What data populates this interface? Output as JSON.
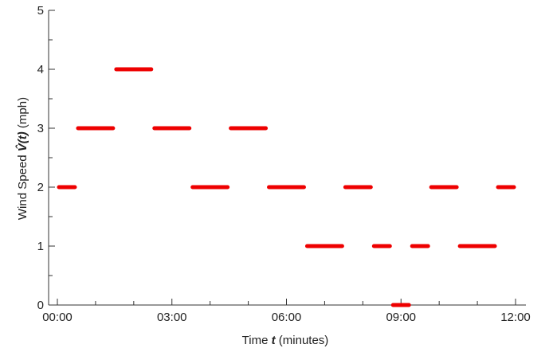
{
  "chart_data": {
    "type": "line",
    "xlabel_prefix": "Time ",
    "xlabel_var": "t",
    "xlabel_suffix": " (minutes)",
    "ylabel_prefix": "Wind Speed ",
    "ylabel_var": "V̂(t)",
    "ylabel_suffix": " (mph)",
    "xlim": [
      0,
      12
    ],
    "ylim": [
      0,
      5
    ],
    "x_ticks": [
      0,
      3,
      6,
      9,
      12
    ],
    "x_tick_labels": [
      "00:00",
      "03:00",
      "06:00",
      "09:00",
      "12:00"
    ],
    "y_ticks": [
      0,
      1,
      2,
      3,
      4,
      5
    ],
    "y_tick_labels": [
      "0",
      "1",
      "2",
      "3",
      "4",
      "5"
    ],
    "grid": false,
    "series_color": "#ee0000",
    "segments": [
      {
        "x_start": 0.0,
        "x_end": 0.5,
        "y": 2
      },
      {
        "x_start": 0.5,
        "x_end": 1.5,
        "y": 3
      },
      {
        "x_start": 1.5,
        "x_end": 2.5,
        "y": 4
      },
      {
        "x_start": 2.5,
        "x_end": 3.5,
        "y": 3
      },
      {
        "x_start": 3.5,
        "x_end": 4.5,
        "y": 2
      },
      {
        "x_start": 4.5,
        "x_end": 5.5,
        "y": 3
      },
      {
        "x_start": 5.5,
        "x_end": 6.5,
        "y": 2
      },
      {
        "x_start": 6.5,
        "x_end": 7.5,
        "y": 1
      },
      {
        "x_start": 7.5,
        "x_end": 8.25,
        "y": 2
      },
      {
        "x_start": 8.25,
        "x_end": 8.75,
        "y": 1
      },
      {
        "x_start": 8.75,
        "x_end": 9.25,
        "y": 0
      },
      {
        "x_start": 9.25,
        "x_end": 9.75,
        "y": 1
      },
      {
        "x_start": 9.75,
        "x_end": 10.5,
        "y": 2
      },
      {
        "x_start": 10.5,
        "x_end": 11.5,
        "y": 1
      },
      {
        "x_start": 11.5,
        "x_end": 12.0,
        "y": 2
      }
    ]
  }
}
